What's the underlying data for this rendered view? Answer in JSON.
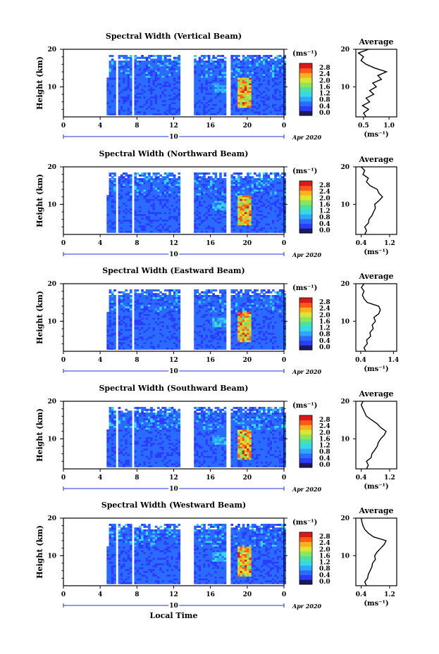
{
  "figure": {
    "xlabel": "Local Time",
    "ylabel": "Height (km)",
    "day_label": "10",
    "date_label": "Apr 2020",
    "avg_title": "Average",
    "colorbar_unit": "(ms⁻¹)",
    "avg_unit": "(ms⁻¹)"
  },
  "chart_data": [
    {
      "type": "heatmap",
      "title": "Spectral Width (Vertical Beam)",
      "x_ticks": [
        "0",
        "4",
        "8",
        "12",
        "16",
        "20",
        "0"
      ],
      "y_ticks": [
        "10",
        "20"
      ],
      "xlim": [
        0,
        24
      ],
      "ylim": [
        2,
        20
      ],
      "colorbar_ticks": [
        "2.8",
        "2.4",
        "2.0",
        "1.6",
        "1.2",
        "0.8",
        "0.4",
        "0.0"
      ],
      "average": {
        "title": "Average",
        "x_ticks": [
          "0.5",
          "1.0"
        ],
        "xlim": [
          0.35,
          1.15
        ],
        "profile": [
          [
            2,
            0.55
          ],
          [
            3,
            0.5
          ],
          [
            4,
            0.6
          ],
          [
            5,
            0.48
          ],
          [
            6,
            0.62
          ],
          [
            7,
            0.55
          ],
          [
            8,
            0.7
          ],
          [
            9,
            0.62
          ],
          [
            10,
            0.75
          ],
          [
            11,
            0.68
          ],
          [
            12,
            0.85
          ],
          [
            13,
            0.78
          ],
          [
            14,
            0.95
          ],
          [
            15,
            0.72
          ],
          [
            16,
            0.55
          ],
          [
            17,
            0.45
          ],
          [
            18,
            0.5
          ],
          [
            19,
            0.4
          ],
          [
            20,
            0.6
          ]
        ]
      }
    },
    {
      "type": "heatmap",
      "title": "Spectral Width (Northward Beam)",
      "x_ticks": [
        "0",
        "4",
        "8",
        "12",
        "16",
        "20",
        "0"
      ],
      "y_ticks": [
        "10",
        "20"
      ],
      "xlim": [
        0,
        24
      ],
      "ylim": [
        2,
        20
      ],
      "colorbar_ticks": [
        "2.8",
        "2.4",
        "2.0",
        "1.6",
        "1.2",
        "0.8",
        "0.4",
        "0.0"
      ],
      "average": {
        "title": "Average",
        "x_ticks": [
          "0.4",
          "1.2"
        ],
        "xlim": [
          0.25,
          1.4
        ],
        "profile": [
          [
            2,
            0.5
          ],
          [
            3,
            0.55
          ],
          [
            4,
            0.5
          ],
          [
            5,
            0.6
          ],
          [
            6,
            0.62
          ],
          [
            7,
            0.7
          ],
          [
            8,
            0.75
          ],
          [
            9,
            0.8
          ],
          [
            10,
            0.78
          ],
          [
            11,
            0.9
          ],
          [
            12,
            1.0
          ],
          [
            13,
            0.9
          ],
          [
            14,
            0.85
          ],
          [
            15,
            0.65
          ],
          [
            16,
            0.55
          ],
          [
            17,
            0.6
          ],
          [
            18,
            0.45
          ],
          [
            19,
            0.5
          ],
          [
            20,
            0.4
          ]
        ]
      }
    },
    {
      "type": "heatmap",
      "title": "Spectral Width (Eastward Beam)",
      "x_ticks": [
        "0",
        "4",
        "8",
        "12",
        "16",
        "20",
        "0"
      ],
      "y_ticks": [
        "10",
        "20"
      ],
      "xlim": [
        0,
        24
      ],
      "ylim": [
        2,
        20
      ],
      "colorbar_ticks": [
        "2.8",
        "2.4",
        "2.0",
        "1.6",
        "1.2",
        "0.8",
        "0.4",
        "0.0"
      ],
      "average": {
        "title": "Average",
        "x_ticks": [
          "0.4",
          "1.4"
        ],
        "xlim": [
          0.25,
          1.5
        ],
        "profile": [
          [
            2,
            0.55
          ],
          [
            3,
            0.5
          ],
          [
            4,
            0.6
          ],
          [
            5,
            0.58
          ],
          [
            6,
            0.7
          ],
          [
            7,
            0.68
          ],
          [
            8,
            0.78
          ],
          [
            9,
            0.75
          ],
          [
            10,
            0.85
          ],
          [
            11,
            0.8
          ],
          [
            12,
            0.95
          ],
          [
            13,
            1.0
          ],
          [
            14,
            0.95
          ],
          [
            15,
            0.6
          ],
          [
            16,
            0.5
          ],
          [
            17,
            0.45
          ],
          [
            18,
            0.5
          ],
          [
            19,
            0.42
          ],
          [
            20,
            0.5
          ]
        ]
      }
    },
    {
      "type": "heatmap",
      "title": "Spectral Width (Southward Beam)",
      "x_ticks": [
        "0",
        "4",
        "8",
        "12",
        "16",
        "20",
        "0"
      ],
      "y_ticks": [
        "10",
        "20"
      ],
      "xlim": [
        0,
        24
      ],
      "ylim": [
        2,
        20
      ],
      "colorbar_ticks": [
        "2.8",
        "2.4",
        "2.0",
        "1.6",
        "1.2",
        "0.8",
        "0.4",
        "0.0"
      ],
      "average": {
        "title": "Average",
        "x_ticks": [
          "0.4",
          "1.2"
        ],
        "xlim": [
          0.25,
          1.4
        ],
        "profile": [
          [
            2,
            0.55
          ],
          [
            3,
            0.6
          ],
          [
            4,
            0.55
          ],
          [
            5,
            0.68
          ],
          [
            6,
            0.7
          ],
          [
            7,
            0.78
          ],
          [
            8,
            0.85
          ],
          [
            9,
            0.88
          ],
          [
            10,
            0.95
          ],
          [
            11,
            1.05
          ],
          [
            12,
            1.1
          ],
          [
            13,
            0.95
          ],
          [
            14,
            0.85
          ],
          [
            15,
            0.7
          ],
          [
            16,
            0.55
          ],
          [
            17,
            0.5
          ],
          [
            18,
            0.45
          ],
          [
            19,
            0.4
          ],
          [
            20,
            0.45
          ]
        ]
      }
    },
    {
      "type": "heatmap",
      "title": "Spectral Width (Westward Beam)",
      "x_ticks": [
        "0",
        "4",
        "8",
        "12",
        "16",
        "20",
        "0"
      ],
      "y_ticks": [
        "10",
        "20"
      ],
      "xlim": [
        0,
        24
      ],
      "ylim": [
        2,
        20
      ],
      "colorbar_ticks": [
        "2.8",
        "2.4",
        "2.0",
        "1.6",
        "1.2",
        "0.8",
        "0.4",
        "0.0"
      ],
      "average": {
        "title": "Average",
        "x_ticks": [
          "0.4",
          "1.2"
        ],
        "xlim": [
          0.25,
          1.4
        ],
        "profile": [
          [
            2,
            0.55
          ],
          [
            3,
            0.5
          ],
          [
            4,
            0.58
          ],
          [
            5,
            0.6
          ],
          [
            6,
            0.65
          ],
          [
            7,
            0.7
          ],
          [
            8,
            0.72
          ],
          [
            9,
            0.8
          ],
          [
            10,
            0.78
          ],
          [
            11,
            0.85
          ],
          [
            12,
            0.95
          ],
          [
            13,
            1.05
          ],
          [
            14,
            1.1
          ],
          [
            15,
            0.75
          ],
          [
            16,
            0.6
          ],
          [
            17,
            0.5
          ],
          [
            18,
            0.45
          ],
          [
            19,
            0.42
          ],
          [
            20,
            0.4
          ]
        ]
      }
    }
  ],
  "colors": {
    "colorbar": [
      "#1a1a5e",
      "#2a3cff",
      "#2b6bff",
      "#2ea8ff",
      "#33d9e6",
      "#4de0a0",
      "#8ce65c",
      "#d9e633",
      "#ffb01f",
      "#ff5a1a",
      "#d91a1a"
    ],
    "background_noise": "#3355ee",
    "frame": "#000000",
    "date_axis": "#2233cc"
  }
}
